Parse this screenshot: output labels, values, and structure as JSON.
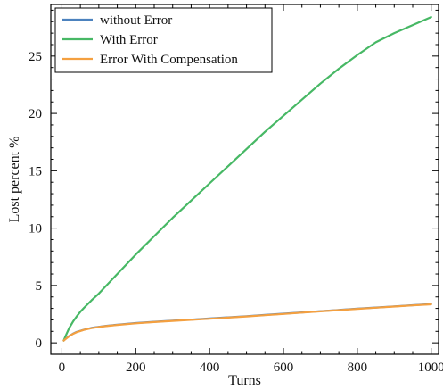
{
  "chart_data": {
    "type": "line",
    "xlabel": "Turns",
    "ylabel": "Lost percent %",
    "xlim": [
      -30,
      1020
    ],
    "ylim": [
      -1,
      29.5
    ],
    "xticks": [
      0,
      200,
      400,
      600,
      800,
      1000
    ],
    "yticks": [
      0,
      5,
      10,
      15,
      20,
      25
    ],
    "grid": false,
    "legend_position": "top-left",
    "series": [
      {
        "name": "without Error",
        "color": "#4c82be",
        "x": [
          5,
          10,
          20,
          30,
          40,
          50,
          60,
          80,
          100,
          120,
          150,
          200,
          250,
          300,
          350,
          400,
          450,
          500,
          550,
          600,
          650,
          700,
          750,
          800,
          850,
          900,
          950,
          1000
        ],
        "y": [
          0.2,
          0.35,
          0.6,
          0.8,
          0.95,
          1.05,
          1.15,
          1.3,
          1.4,
          1.48,
          1.58,
          1.72,
          1.83,
          1.93,
          2.02,
          2.12,
          2.22,
          2.32,
          2.43,
          2.54,
          2.65,
          2.76,
          2.87,
          2.98,
          3.08,
          3.18,
          3.28,
          3.38
        ]
      },
      {
        "name": "With Error",
        "color": "#47b865",
        "x": [
          5,
          10,
          20,
          30,
          40,
          50,
          60,
          80,
          100,
          150,
          200,
          250,
          300,
          350,
          400,
          450,
          500,
          550,
          600,
          650,
          700,
          750,
          800,
          850,
          900,
          950,
          1000
        ],
        "y": [
          0.2,
          0.6,
          1.3,
          1.85,
          2.3,
          2.7,
          3.05,
          3.7,
          4.3,
          6.0,
          7.7,
          9.3,
          10.9,
          12.4,
          13.9,
          15.4,
          16.9,
          18.4,
          19.8,
          21.2,
          22.6,
          23.9,
          25.1,
          26.2,
          27.0,
          27.7,
          28.4
        ]
      },
      {
        "name": "Error With Compensation",
        "color": "#f4a040",
        "x": [
          5,
          10,
          20,
          30,
          40,
          50,
          60,
          80,
          100,
          120,
          150,
          200,
          250,
          300,
          350,
          400,
          450,
          500,
          550,
          600,
          650,
          700,
          750,
          800,
          850,
          900,
          950,
          1000
        ],
        "y": [
          0.2,
          0.33,
          0.58,
          0.78,
          0.93,
          1.03,
          1.13,
          1.28,
          1.38,
          1.46,
          1.56,
          1.7,
          1.81,
          1.91,
          2.0,
          2.1,
          2.2,
          2.3,
          2.41,
          2.52,
          2.63,
          2.74,
          2.85,
          2.96,
          3.06,
          3.16,
          3.26,
          3.36
        ]
      }
    ]
  }
}
